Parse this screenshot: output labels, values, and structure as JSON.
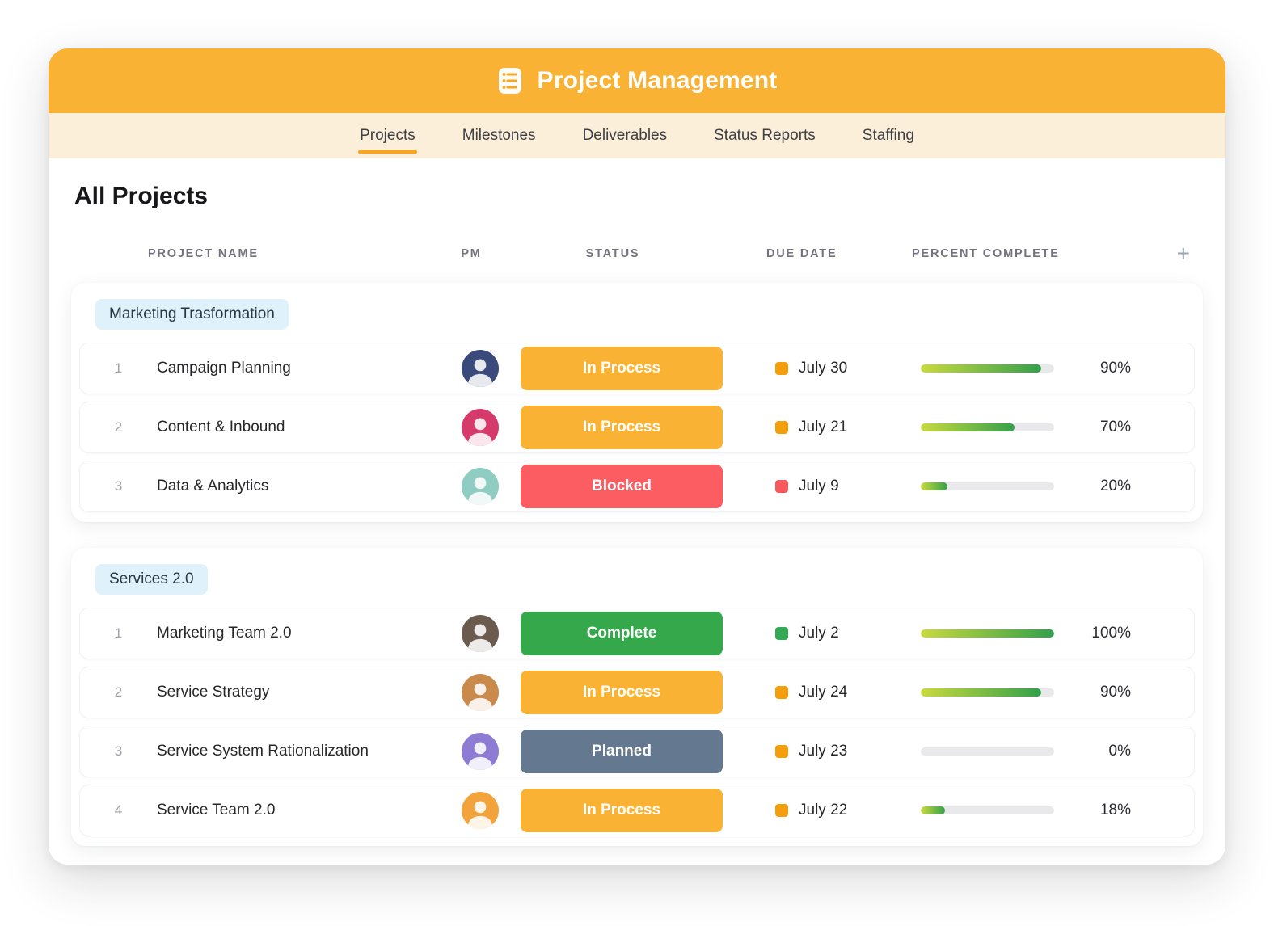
{
  "app": {
    "title": "Project Management"
  },
  "tabs": [
    {
      "label": "Projects",
      "active": true
    },
    {
      "label": "Milestones",
      "active": false
    },
    {
      "label": "Deliverables",
      "active": false
    },
    {
      "label": "Status Reports",
      "active": false
    },
    {
      "label": "Staffing",
      "active": false
    }
  ],
  "page": {
    "title": "All Projects"
  },
  "table": {
    "headers": {
      "name": "PROJECT NAME",
      "pm": "PM",
      "status": "STATUS",
      "due": "DUE DATE",
      "percent": "PERCENT COMPLETE"
    },
    "add_label": "+"
  },
  "groups": [
    {
      "name": "Marketing Trasformation",
      "rows": [
        {
          "num": "1",
          "name": "Campaign Planning",
          "status": "In Process",
          "status_key": "in_process",
          "due": "July 30",
          "due_key": "orange",
          "percent": 90,
          "percent_label": "90%",
          "avatar_color": "#3a4a7a"
        },
        {
          "num": "2",
          "name": "Content & Inbound",
          "status": "In Process",
          "status_key": "in_process",
          "due": "July 21",
          "due_key": "orange",
          "percent": 70,
          "percent_label": "70%",
          "avatar_color": "#d63a6a"
        },
        {
          "num": "3",
          "name": "Data & Analytics",
          "status": "Blocked",
          "status_key": "blocked",
          "due": "July 9",
          "due_key": "red",
          "percent": 20,
          "percent_label": "20%",
          "avatar_color": "#8fccc2"
        }
      ]
    },
    {
      "name": "Services 2.0",
      "rows": [
        {
          "num": "1",
          "name": "Marketing Team 2.0",
          "status": "Complete",
          "status_key": "complete",
          "due": "July 2",
          "due_key": "green",
          "percent": 100,
          "percent_label": "100%",
          "avatar_color": "#6b5b4e"
        },
        {
          "num": "2",
          "name": "Service Strategy",
          "status": "In Process",
          "status_key": "in_process",
          "due": "July 24",
          "due_key": "orange",
          "percent": 90,
          "percent_label": "90%",
          "avatar_color": "#c98a4b"
        },
        {
          "num": "3",
          "name": "Service System Rationalization",
          "status": "Planned",
          "status_key": "planned",
          "due": "July 23",
          "due_key": "orange",
          "percent": 0,
          "percent_label": "0%",
          "avatar_color": "#8d7bd4"
        },
        {
          "num": "4",
          "name": "Service Team 2.0",
          "status": "In Process",
          "status_key": "in_process",
          "due": "July 22",
          "due_key": "orange",
          "percent": 18,
          "percent_label": "18%",
          "avatar_color": "#f2a33c"
        }
      ]
    }
  ],
  "colors": {
    "theme": {
      "header_orange": "#F9B234",
      "tabbar_cream": "#FCEFD9",
      "accent_orange": "#F5A623",
      "chip_blue": "#DFF2FB",
      "track_gray": "#E9E9EC",
      "bar_start": "#C9DA3F",
      "bar_end": "#33A04A"
    },
    "status": {
      "in_process": "#F9B234",
      "blocked": "#FB5D63",
      "complete": "#35A84C",
      "planned": "#64798F"
    },
    "due": {
      "orange": "#F59E0B",
      "red": "#F8575C",
      "green": "#34A853"
    }
  }
}
